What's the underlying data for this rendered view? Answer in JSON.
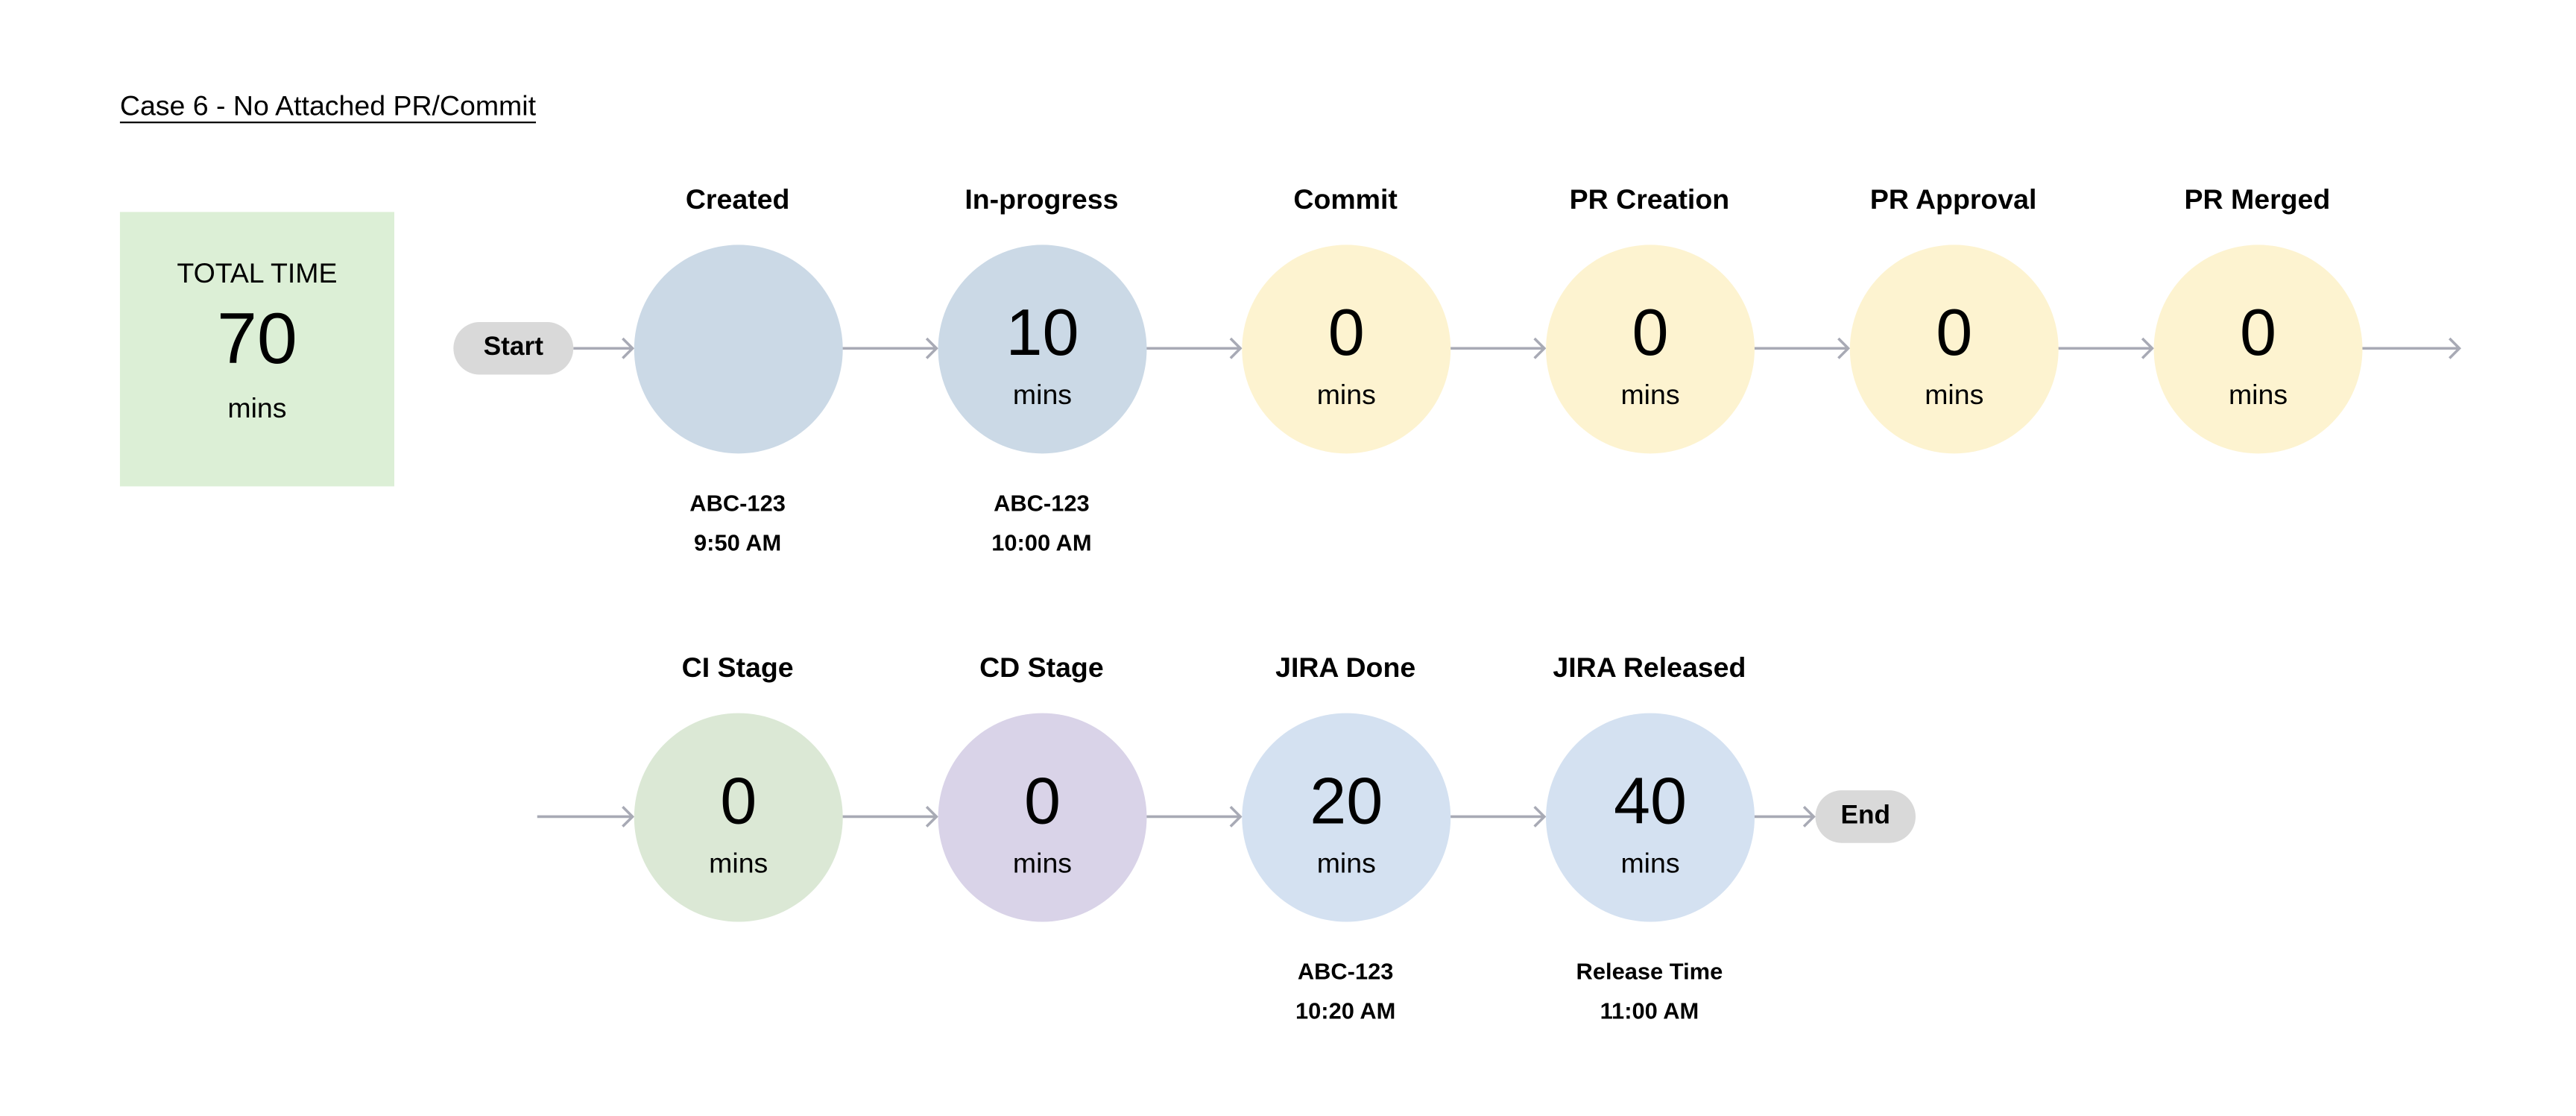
{
  "title": "Case 6 - No Attached PR/Commit",
  "total": {
    "label": "TOTAL TIME",
    "value": "70",
    "unit": "mins"
  },
  "start_label": "Start",
  "end_label": "End",
  "colors": {
    "arrow": "#a8aab5",
    "pill": "#d9d9d9",
    "total_bg": "#dcefd6"
  },
  "rows": [
    [
      {
        "label": "Created",
        "value": "",
        "unit": "",
        "color": "#cbd9e6",
        "sub": [
          "ABC-123",
          "9:50 AM"
        ]
      },
      {
        "label": "In-progress",
        "value": "10",
        "unit": "mins",
        "color": "#cbd9e6",
        "sub": [
          "ABC-123",
          "10:00 AM"
        ]
      },
      {
        "label": "Commit",
        "value": "0",
        "unit": "mins",
        "color": "#fdf3d0",
        "sub": []
      },
      {
        "label": "PR Creation",
        "value": "0",
        "unit": "mins",
        "color": "#fdf3d0",
        "sub": []
      },
      {
        "label": "PR Approval",
        "value": "0",
        "unit": "mins",
        "color": "#fdf3d0",
        "sub": []
      },
      {
        "label": "PR Merged",
        "value": "0",
        "unit": "mins",
        "color": "#fdf3d0",
        "sub": []
      }
    ],
    [
      {
        "label": "CI Stage",
        "value": "0",
        "unit": "mins",
        "color": "#dbe8d5",
        "sub": []
      },
      {
        "label": "CD Stage",
        "value": "0",
        "unit": "mins",
        "color": "#d9d3e8",
        "sub": []
      },
      {
        "label": "JIRA Done",
        "value": "20",
        "unit": "mins",
        "color": "#d4e1f1",
        "sub": [
          "ABC-123",
          "10:20 AM"
        ]
      },
      {
        "label": "JIRA Released",
        "value": "40",
        "unit": "mins",
        "color": "#d4e1f1",
        "sub": [
          "Release Time",
          "11:00 AM"
        ]
      }
    ]
  ]
}
